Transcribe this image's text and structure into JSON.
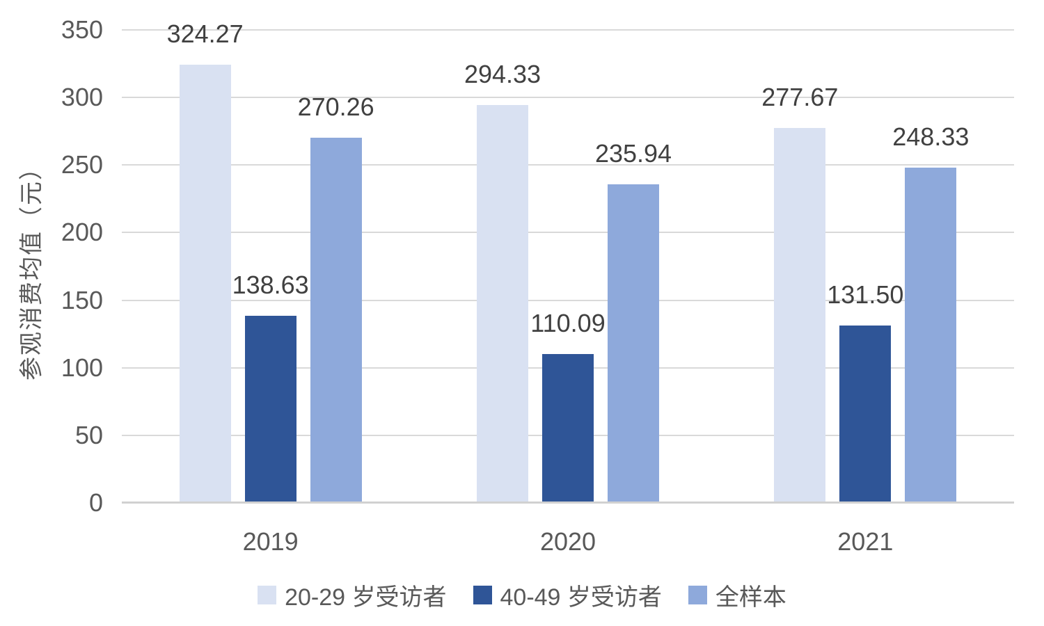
{
  "chart_data": {
    "type": "bar",
    "title": "",
    "xlabel": "",
    "ylabel": "参观消费均值（元）",
    "categories": [
      "2019",
      "2020",
      "2021"
    ],
    "series": [
      {
        "name": "20-29 岁受访者",
        "color": "#D9E1F2",
        "values": [
          324.27,
          294.33,
          277.67
        ]
      },
      {
        "name": "40-49 岁受访者",
        "color": "#2F5597",
        "values": [
          138.63,
          110.09,
          131.5
        ]
      },
      {
        "name": "全样本",
        "color": "#8EA9DB",
        "values": [
          270.26,
          235.94,
          248.33
        ]
      }
    ],
    "ylim": [
      0,
      350
    ],
    "yticks": [
      0,
      50,
      100,
      150,
      200,
      250,
      300,
      350
    ],
    "value_label_decimals": 2,
    "grid": true,
    "legend_position": "bottom",
    "colors": {
      "gridline": "#D9D9D9",
      "axis_line": "#D1D1D1",
      "tick_text": "#595959",
      "label_text": "#404040"
    }
  }
}
